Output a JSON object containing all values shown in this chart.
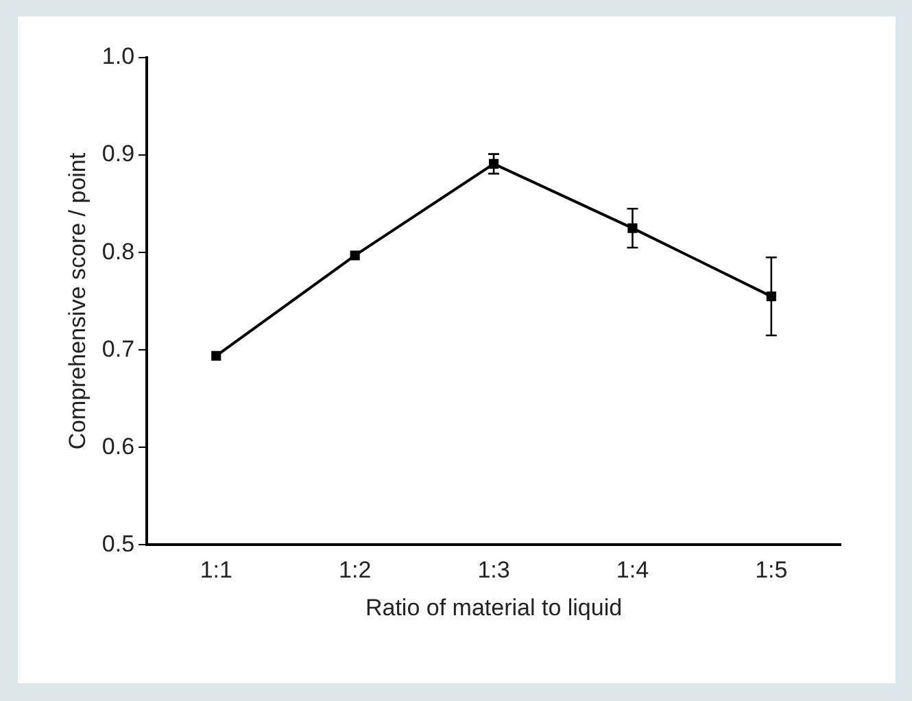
{
  "chart_data": {
    "type": "line",
    "xlabel": "Ratio of material to liquid",
    "ylabel": "Comprehensive score / point",
    "categories": [
      "1:1",
      "1:2",
      "1:3",
      "1:4",
      "1:5"
    ],
    "series": [
      {
        "color": "#000000",
        "values": [
          0.694,
          0.797,
          0.891,
          0.825,
          0.755
        ],
        "errors": [
          null,
          null,
          0.01,
          0.02,
          0.04
        ]
      }
    ],
    "ylim": [
      0.5,
      1.0
    ],
    "yticks": [
      {
        "value": 0.5,
        "label": "0.5"
      },
      {
        "value": 0.6,
        "label": "0.6"
      },
      {
        "value": 0.7,
        "label": "0.7"
      },
      {
        "value": 0.8,
        "label": "0.8"
      },
      {
        "value": 0.9,
        "label": "0.9"
      },
      {
        "value": 1.0,
        "label": "1.0"
      }
    ],
    "grid": false,
    "legend": false,
    "marker": "square",
    "line_style": "solid"
  }
}
